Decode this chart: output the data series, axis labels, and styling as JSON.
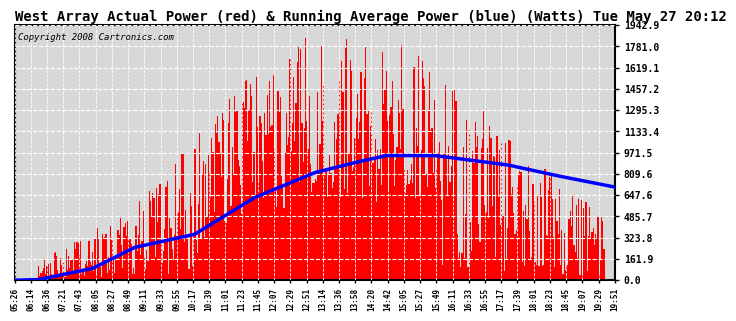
{
  "title": "West Array Actual Power (red) & Running Average Power (blue) (Watts) Tue May 27 20:12",
  "copyright": "Copyright 2008 Cartronics.com",
  "ylim": [
    0,
    1942.9
  ],
  "yticks": [
    0.0,
    161.9,
    323.8,
    485.7,
    647.6,
    809.6,
    971.5,
    1133.4,
    1295.3,
    1457.2,
    1619.1,
    1781.0,
    1942.9
  ],
  "xtick_labels": [
    "05:26",
    "06:14",
    "06:36",
    "07:21",
    "07:43",
    "08:05",
    "08:27",
    "08:49",
    "09:11",
    "09:33",
    "09:55",
    "10:17",
    "10:39",
    "11:01",
    "11:23",
    "11:45",
    "12:07",
    "12:29",
    "12:51",
    "13:14",
    "13:36",
    "13:58",
    "14:20",
    "14:42",
    "15:05",
    "15:27",
    "15:49",
    "16:11",
    "16:33",
    "16:55",
    "17:17",
    "17:39",
    "18:01",
    "18:23",
    "18:45",
    "19:07",
    "19:29",
    "19:51"
  ],
  "bg_color": "#ffffff",
  "plot_bg_color": "#d8d8d8",
  "grid_color": "#ffffff",
  "bar_color": "#ff0000",
  "line_color": "#0000ff",
  "title_bg": "#ffffff",
  "title_fontsize": 10,
  "copyright_fontsize": 6.5
}
